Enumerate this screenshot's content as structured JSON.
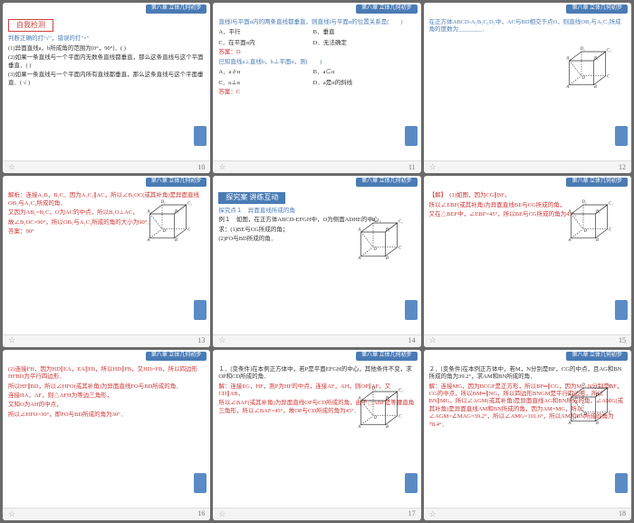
{
  "header": "第八章 立体几何初步",
  "slides": [
    {
      "page": "10",
      "title": "自我检测",
      "titleType": "red",
      "body": [
        {
          "t": "判断正确的打\"√\"，错误的打\"×\"",
          "c": "blue"
        },
        {
          "t": "(1)异面直线a，b所成角的范围为(0°，90°]．(   )"
        },
        {
          "t": "(2)如果一条直线与一个平面内无数条直线都垂直，那么这条直线与这个平面垂直．(   )",
          "c": ""
        },
        {
          "t": "(3)如果一条直线与一个平面内所有直线都垂直，那么这条直线与这个平面垂直．(  √  )",
          "c": ""
        }
      ]
    },
    {
      "page": "11",
      "body": [
        {
          "t": "直线l与平面α内的两条直线都垂直，则直线l与平面α的位置关系是(　　)",
          "c": "blue"
        },
        {
          "opts": [
            "A．平行",
            "B．垂直",
            "C．在平面α内",
            "D．无法确定"
          ]
        },
        {
          "t": "答案：D",
          "c": "red"
        },
        {
          "t": "已知直线a⊥直线b，b⊥平面α，则(　　)",
          "c": "blue"
        },
        {
          "opts": [
            "A．a∥α",
            "B．a⊂α",
            "C．a⊥α",
            "D．a是α的斜线"
          ]
        },
        {
          "t": "答案：C",
          "c": "red"
        }
      ]
    },
    {
      "page": "12",
      "hasCube": true,
      "cubePos": "right:10px;top:30px",
      "body": [
        {
          "t": "在正方体ABCD-A₁B₁C₁D₁中，AC与BD相交于点O，则直线OB₁与A₁C₁所成角的度数为________．",
          "c": "blue"
        }
      ]
    },
    {
      "page": "13",
      "hasCube": true,
      "cubePos": "right:8px;top:8px",
      "body": [
        {
          "t": "解析：连接A₁B，B₁C．因为A₁C₁∥AC，所以∠B₁OC(或其补角)是异面直线OB₁与A₁C₁所成的角．",
          "c": "red"
        },
        {
          "t": "又因为AB₁=B₁C，O为AC的中点，所以B₁O⊥AC，",
          "c": "red"
        },
        {
          "t": "故∠B₁OC=90°，所以OB₁与A₁C₁所成的角的大小为90°．",
          "c": "red"
        },
        {
          "t": "答案：90°",
          "c": "red"
        }
      ]
    },
    {
      "page": "14",
      "title": "探究案 讲练互动",
      "titleType": "blue",
      "hasCube": true,
      "cubePos": "right:8px;top:28px",
      "body": [
        {
          "t": "探究点１　异面直线所成的角",
          "c": "blue"
        },
        {
          "t": "例１　如图，在正方体ABCD-EFGH中，O为侧面ADHE的中心．",
          "c": ""
        },
        {
          "t": "求：(1)BE与CG所成的角；",
          "c": ""
        },
        {
          "t": "(2)FO与BD所成的角．",
          "c": ""
        }
      ]
    },
    {
      "page": "15",
      "hasCube": true,
      "cubePos": "right:8px;top:8px",
      "body": [
        {
          "t": "【解】　(1)如图，因为CG∥BF，",
          "c": "red"
        },
        {
          "t": "所以∠EBF(或其补角)为异面直线BE与CG所成的角，",
          "c": "red"
        },
        {
          "t": "又在△BEF中，∠EBF=45°，所以BE与CG所成的角为45°．",
          "c": "red"
        }
      ]
    },
    {
      "page": "16",
      "body": [
        {
          "t": "(2)连接FH，因为HD∥EA，EA∥FB，所以HD∥FB，又HD=FB，所以四边形HFBD为平行四边形．",
          "c": "red"
        },
        {
          "t": "所以HF∥BD，所以∠HFO(或其补角)为异面直线FO与BD所成的角．",
          "c": "red"
        },
        {
          "t": "连接HA，AF，则△AFH为等边三角形，",
          "c": "red"
        },
        {
          "t": "又知O为AH的中点，",
          "c": "red"
        },
        {
          "t": "所以∠HFO=30°，即FO与BD所成的角为30°．",
          "c": "red"
        }
      ]
    },
    {
      "page": "17",
      "hasCube": true,
      "cubePos": "right:8px;top:22px",
      "body": [
        {
          "t": "１．[变条件]在本例正方体中，若P是平面EFGH的中心，其他条件不变，求OP和CD所成的角．",
          "c": ""
        },
        {
          "t": "解：连接EG，HF，则P为HF的中点，连接AF，AH，则OP∥AF，又CD∥AB，",
          "c": "red"
        },
        {
          "t": "所以∠BAF(或其补角)为异面直线OP与CD所成的角，由于△ABF是等腰直角三角形，所以∠BAF=45°，故OP与CD所成的角为45°．",
          "c": "red"
        }
      ]
    },
    {
      "page": "18",
      "hasCube": true,
      "cubePos": "right:8px;top:18px",
      "body": [
        {
          "t": "２．[变条件]在本例正方体中，若M，N分别是BF，CG的中点，且AG和BN所成的角为39.2°，求AM和BN所成的角．",
          "c": ""
        },
        {
          "t": "解：连接MG，因为BCGF是正方形，所以BF═∥CG，因为M，N分别是BF，CG的中点，所以BM═∥NG，所以四边形BNGM是平行四边形，所以BN∥MG，所以∠AGM(或其补角)是异面直线AG和BN所成的角，∠AMG(或其补角)是异面直线AM和BN所成的角，因为AM=MG，所以∠AGM=∠MAG=39.2°，所以∠AMG=101.6°，所以AM和BN所成的角为78.4°．",
          "c": "red"
        }
      ]
    }
  ]
}
